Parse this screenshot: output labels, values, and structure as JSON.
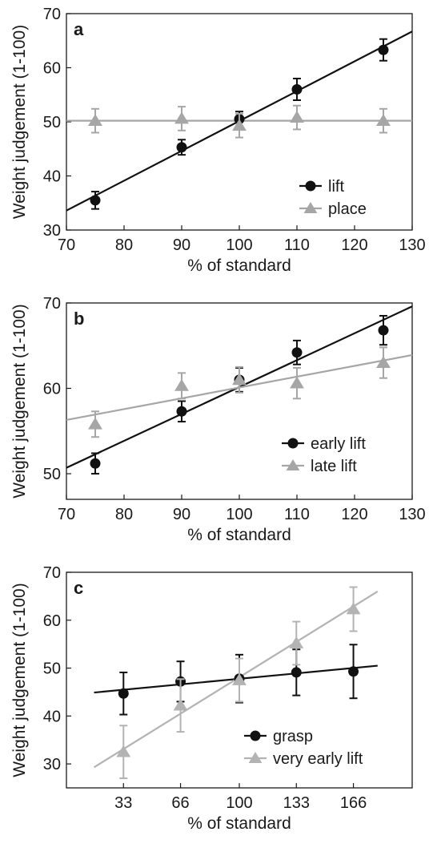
{
  "chart_data": [
    {
      "panel_label": "a",
      "type": "scatter",
      "xlabel": "% of standard",
      "ylabel": "Weight judgement (1-100)",
      "xlim": [
        70,
        130
      ],
      "ylim": [
        30,
        70
      ],
      "x_ticks": [
        "70",
        "80",
        "90",
        "100",
        "110",
        "120",
        "130"
      ],
      "y_ticks": [
        "30",
        "40",
        "50",
        "60",
        "70"
      ],
      "legend_position": "bottom-right",
      "series": [
        {
          "name": "lift",
          "marker": "circle",
          "color": "#111111",
          "x": [
            75,
            90,
            100,
            110,
            125
          ],
          "y": [
            35.5,
            45.3,
            50.5,
            56.0,
            63.3
          ],
          "err": [
            1.6,
            1.4,
            1.4,
            2.0,
            2.0
          ],
          "fit_line": [
            [
              70,
              33.6
            ],
            [
              130,
              66.7
            ]
          ]
        },
        {
          "name": "place",
          "marker": "triangle",
          "color": "#a6a6a6",
          "x": [
            75,
            90,
            100,
            110,
            125
          ],
          "y": [
            50.2,
            50.6,
            49.3,
            50.8,
            50.2
          ],
          "err": [
            2.2,
            2.2,
            2.2,
            2.2,
            2.2
          ],
          "fit_line": [
            [
              70,
              50.2
            ],
            [
              130,
              50.2
            ]
          ]
        }
      ]
    },
    {
      "panel_label": "b",
      "type": "scatter",
      "xlabel": "% of standard",
      "ylabel": "Weight judgement (1-100)",
      "xlim": [
        70,
        130
      ],
      "ylim": [
        47,
        70
      ],
      "x_ticks": [
        "70",
        "80",
        "90",
        "100",
        "110",
        "120",
        "130"
      ],
      "y_ticks": [
        "50",
        "60",
        "70"
      ],
      "legend_position": "bottom-right",
      "series": [
        {
          "name": "early lift",
          "marker": "circle",
          "color": "#111111",
          "x": [
            75,
            90,
            100,
            110,
            125
          ],
          "y": [
            51.2,
            57.3,
            61.0,
            64.2,
            66.8
          ],
          "err": [
            1.2,
            1.2,
            1.4,
            1.4,
            1.7
          ],
          "fit_line": [
            [
              70,
              50.7
            ],
            [
              130,
              69.6
            ]
          ]
        },
        {
          "name": "late lift",
          "marker": "triangle",
          "color": "#a6a6a6",
          "x": [
            75,
            90,
            100,
            110,
            125
          ],
          "y": [
            55.8,
            60.3,
            61.0,
            60.6,
            63.0
          ],
          "err": [
            1.5,
            1.5,
            1.5,
            1.8,
            1.8
          ],
          "fit_line": [
            [
              70,
              56.3
            ],
            [
              130,
              63.9
            ]
          ]
        }
      ]
    },
    {
      "panel_label": "c",
      "type": "scatter",
      "xlabel": "% of standard",
      "ylabel": "Weight judgement (1-100)",
      "xlim": [
        0,
        200
      ],
      "ylim": [
        25,
        70
      ],
      "x_ticks": [
        "33",
        "66",
        "100",
        "133",
        "166"
      ],
      "y_ticks": [
        "30",
        "40",
        "50",
        "60",
        "70"
      ],
      "legend_position": "bottom-right",
      "series": [
        {
          "name": "grasp",
          "marker": "circle",
          "color": "#111111",
          "x": [
            33,
            66,
            100,
            133,
            166
          ],
          "y": [
            44.7,
            47.2,
            47.8,
            49.1,
            49.3
          ],
          "err": [
            4.4,
            4.2,
            5.0,
            4.8,
            5.6
          ],
          "fit_line": [
            [
              16,
              44.9
            ],
            [
              180,
              50.5
            ]
          ]
        },
        {
          "name": "very early lift",
          "marker": "triangle",
          "color": "#b3b3b3",
          "x": [
            33,
            66,
            100,
            133,
            166
          ],
          "y": [
            32.5,
            42.2,
            47.5,
            55.2,
            62.3
          ],
          "err": [
            5.5,
            5.5,
            4.5,
            4.5,
            4.6
          ],
          "fit_line": [
            [
              16,
              29.3
            ],
            [
              180,
              66.0
            ]
          ]
        }
      ]
    }
  ]
}
